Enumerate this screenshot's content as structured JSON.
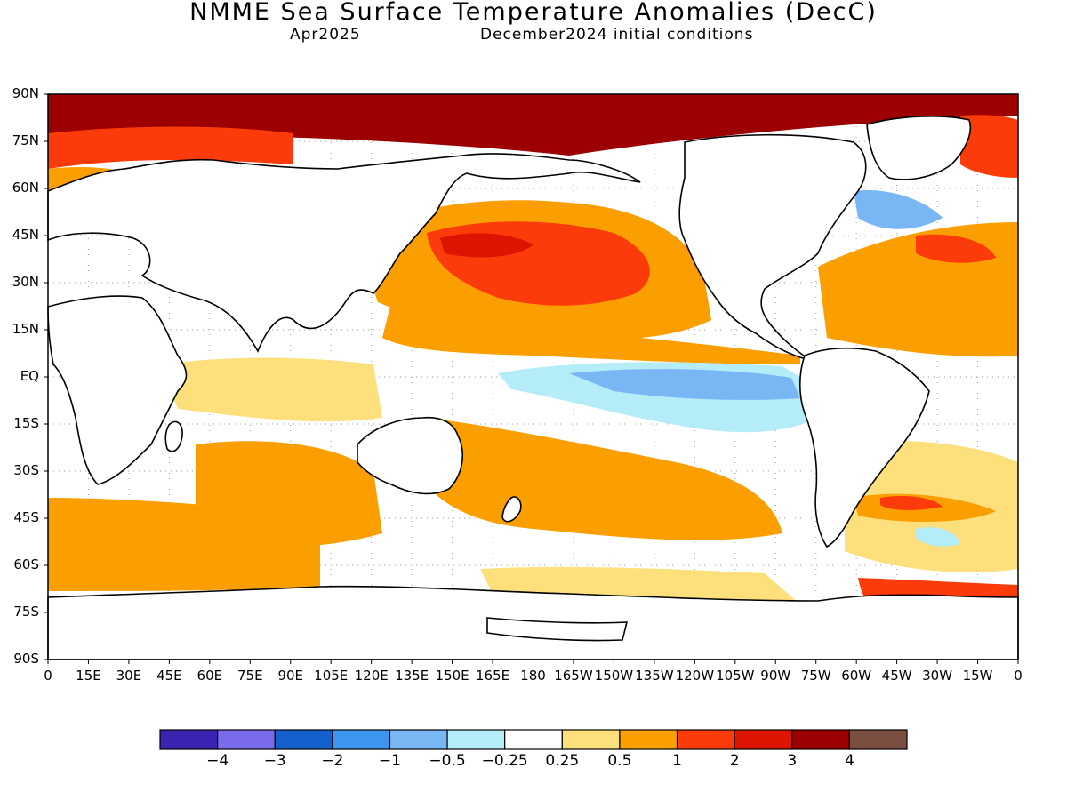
{
  "header": {
    "title": "NMME Sea Surface Temperature Anomalies (DecC)",
    "valid": "Apr2025",
    "init": "December2024 initial conditions"
  },
  "map": {
    "lat_labels": [
      "90N",
      "75N",
      "60N",
      "45N",
      "30N",
      "15N",
      "EQ",
      "15S",
      "30S",
      "45S",
      "60S",
      "75S",
      "90S"
    ],
    "lon_labels": [
      "0",
      "15E",
      "30E",
      "45E",
      "60E",
      "75E",
      "90E",
      "105E",
      "120E",
      "135E",
      "150E",
      "165E",
      "180",
      "165W",
      "150W",
      "135W",
      "120W",
      "105W",
      "90W",
      "75W",
      "60W",
      "45W",
      "30W",
      "15W",
      "0"
    ],
    "colors": {
      "land": "#ffffff",
      "coast": "#000000",
      "grid": "#9a9a9a"
    }
  },
  "legend": {
    "labels": [
      "−4",
      "−3",
      "−2",
      "−1",
      "−0.5",
      "−0.25",
      "0.25",
      "0.5",
      "1",
      "2",
      "3",
      "4"
    ],
    "colors": [
      "#3c22b0",
      "#7a6aec",
      "#1460cc",
      "#3c96f0",
      "#78b6f4",
      "#b4ecf8",
      "#ffffff",
      "#fde07c",
      "#fb9e00",
      "#fb3c0a",
      "#dc1400",
      "#9c0000",
      "#7a4e40"
    ]
  }
}
